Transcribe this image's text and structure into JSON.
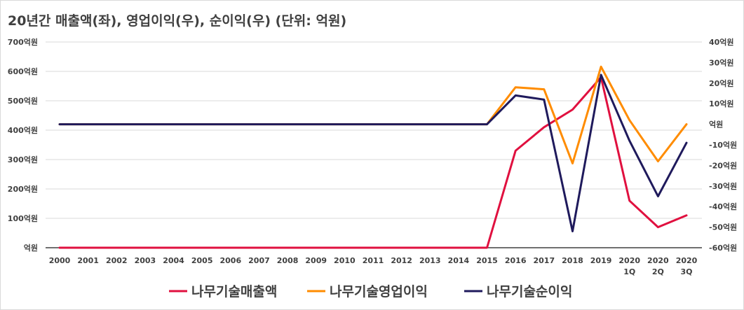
{
  "title": "20년간 매출액(좌), 영업이익(우), 순이익(우) (단위: 억원)",
  "chart_data": {
    "type": "line",
    "title": "20년간 매출액(좌), 영업이익(우), 순이익(우) (단위: 억원)",
    "categories": [
      "2000",
      "2001",
      "2002",
      "2003",
      "2004",
      "2005",
      "2006",
      "2007",
      "2008",
      "2009",
      "2010",
      "2011",
      "2012",
      "2013",
      "2014",
      "2015",
      "2016",
      "2017",
      "2018",
      "2019",
      "2020\n1Q",
      "2020\n2Q",
      "2020\n3Q"
    ],
    "left_axis": {
      "ylim": [
        0,
        700
      ],
      "ticks": [
        0,
        100,
        200,
        300,
        400,
        500,
        600,
        700
      ],
      "tick_labels": [
        "억원",
        "100억원",
        "200억원",
        "300억원",
        "400억원",
        "500억원",
        "600억원",
        "700억원"
      ]
    },
    "right_axis": {
      "ylim": [
        -60,
        40
      ],
      "ticks": [
        -60,
        -50,
        -40,
        -30,
        -20,
        -10,
        0,
        10,
        20,
        30,
        40
      ],
      "tick_labels": [
        "-60억원",
        "-50억원",
        "-40억원",
        "-30억원",
        "-20억원",
        "-10억원",
        "억원",
        "10억원",
        "20억원",
        "30억원",
        "40억원"
      ]
    },
    "grid": true,
    "legend_position": "bottom",
    "series": [
      {
        "name": "나무기술매출액",
        "axis": "left",
        "color": "#e0103f",
        "values": [
          0,
          0,
          0,
          0,
          0,
          0,
          0,
          0,
          0,
          0,
          0,
          0,
          0,
          0,
          0,
          0,
          330,
          410,
          470,
          580,
          160,
          70,
          110
        ]
      },
      {
        "name": "나무기술영업이익",
        "axis": "right",
        "color": "#ff8c00",
        "values": [
          0,
          0,
          0,
          0,
          0,
          0,
          0,
          0,
          0,
          0,
          0,
          0,
          0,
          0,
          0,
          0,
          18,
          17,
          -19,
          28,
          2,
          -18,
          0
        ]
      },
      {
        "name": "나무기술순이익",
        "axis": "right",
        "color": "#1f1a5c",
        "values": [
          0,
          0,
          0,
          0,
          0,
          0,
          0,
          0,
          0,
          0,
          0,
          0,
          0,
          0,
          0,
          0,
          14,
          12,
          -52,
          24,
          -8,
          -35,
          -9
        ]
      }
    ]
  }
}
